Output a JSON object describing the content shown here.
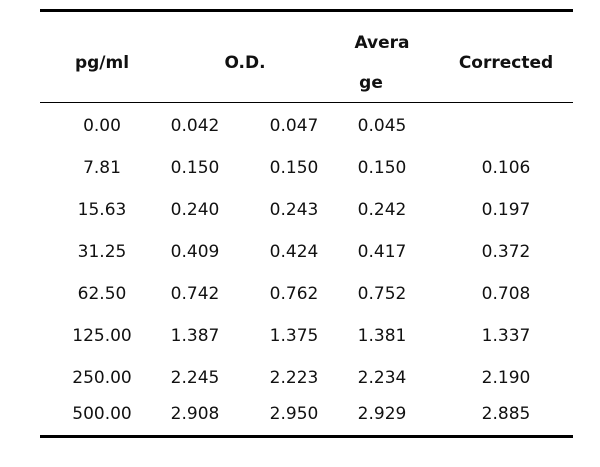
{
  "table": {
    "headers": {
      "concentration": "pg/ml",
      "od": "O.D.",
      "average_part1": "Avera",
      "average_part2": "ge",
      "corrected": "Corrected"
    },
    "rows": [
      {
        "conc": "0.00",
        "od1": "0.042",
        "od2": "0.047",
        "avg": "0.045",
        "corr": ""
      },
      {
        "conc": "7.81",
        "od1": "0.150",
        "od2": "0.150",
        "avg": "0.150",
        "corr": "0.106"
      },
      {
        "conc": "15.63",
        "od1": "0.240",
        "od2": "0.243",
        "avg": "0.242",
        "corr": "0.197"
      },
      {
        "conc": "31.25",
        "od1": "0.409",
        "od2": "0.424",
        "avg": "0.417",
        "corr": "0.372"
      },
      {
        "conc": "62.50",
        "od1": "0.742",
        "od2": "0.762",
        "avg": "0.752",
        "corr": "0.708"
      },
      {
        "conc": "125.00",
        "od1": "1.387",
        "od2": "1.375",
        "avg": "1.381",
        "corr": "1.337"
      },
      {
        "conc": "250.00",
        "od1": "2.245",
        "od2": "2.223",
        "avg": "2.234",
        "corr": "2.190"
      },
      {
        "conc": "500.00",
        "od1": "2.908",
        "od2": "2.950",
        "avg": "2.929",
        "corr": "2.885"
      }
    ]
  }
}
